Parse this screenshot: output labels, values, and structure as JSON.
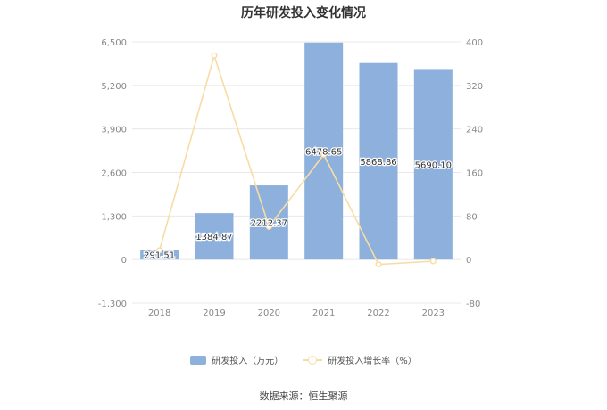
{
  "title": "历年研发投入变化情况",
  "source": "数据来源：恒生聚源",
  "colors": {
    "bar": "#8eb0dc",
    "line": "#f8dca6",
    "grid": "#e8e8e8",
    "axis_text": "#888888"
  },
  "legend": {
    "bar_label": "研发投入（万元）",
    "line_label": "研发投入增长率（%）"
  },
  "chart_data": {
    "type": "bar",
    "categories": [
      "2018",
      "2019",
      "2020",
      "2021",
      "2022",
      "2023"
    ],
    "series": [
      {
        "name": "研发投入（万元）",
        "type": "bar",
        "axis": "left",
        "values": [
          291.51,
          1384.87,
          2212.37,
          6478.65,
          5868.86,
          5690.1
        ],
        "labels": [
          "291.51",
          "1384.87",
          "2212.37",
          "6478.65",
          "5868.86",
          "5690.10"
        ]
      },
      {
        "name": "研发投入增长率（%）",
        "type": "line",
        "axis": "right",
        "values": [
          17,
          375,
          60,
          193,
          -9,
          -3
        ]
      }
    ],
    "y_left": {
      "ylim": [
        -1300,
        6500
      ],
      "ticks": [
        "-1,300",
        "0",
        "1,300",
        "2,600",
        "3,900",
        "5,200",
        "6,500"
      ],
      "tick_values": [
        -1300,
        0,
        1300,
        2600,
        3900,
        5200,
        6500
      ]
    },
    "y_right": {
      "ylim": [
        -80,
        400
      ],
      "ticks": [
        "-80",
        "0",
        "80",
        "160",
        "240",
        "320",
        "400"
      ],
      "tick_values": [
        -80,
        0,
        80,
        160,
        240,
        320,
        400
      ]
    },
    "grid": true,
    "legend_position": "bottom"
  }
}
